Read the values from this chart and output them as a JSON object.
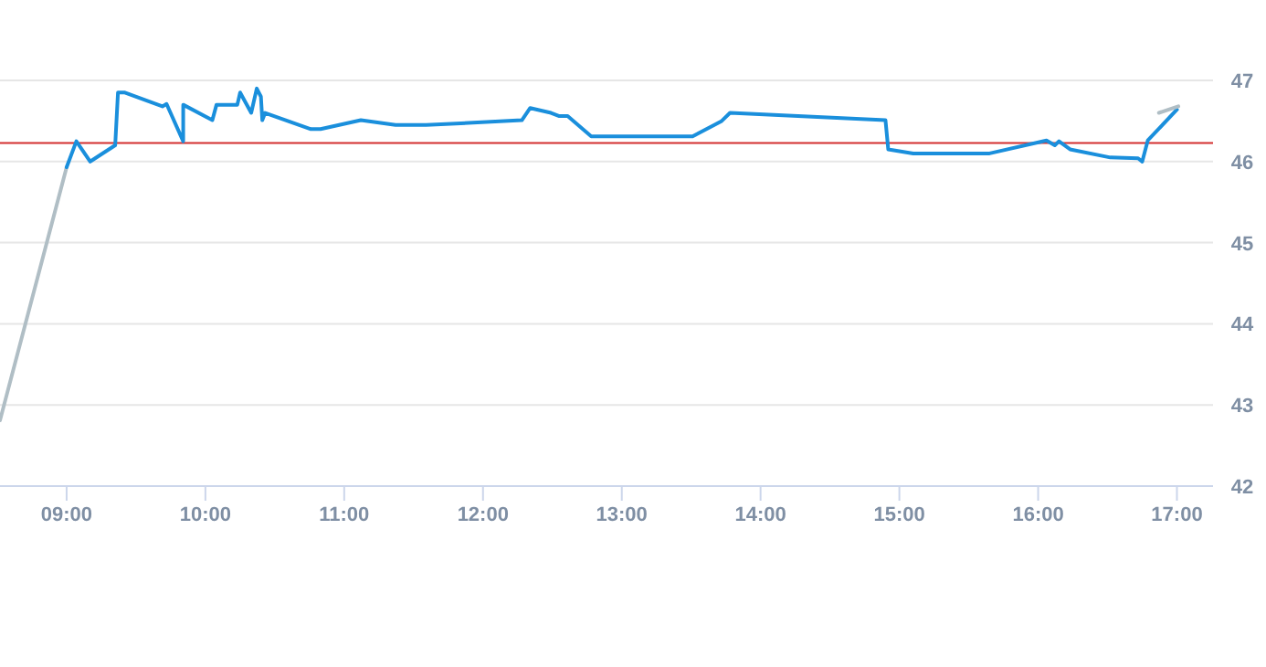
{
  "chart_data": {
    "type": "line",
    "xlim": [
      8.52,
      17.26
    ],
    "ylim": [
      42,
      47
    ],
    "xticks": [
      {
        "value": 9,
        "label": "09:00"
      },
      {
        "value": 10,
        "label": "10:00"
      },
      {
        "value": 11,
        "label": "11:00"
      },
      {
        "value": 12,
        "label": "12:00"
      },
      {
        "value": 13,
        "label": "13:00"
      },
      {
        "value": 14,
        "label": "14:00"
      },
      {
        "value": 15,
        "label": "15:00"
      },
      {
        "value": 16,
        "label": "16:00"
      },
      {
        "value": 17,
        "label": "17:00"
      }
    ],
    "yticks": [
      42,
      43,
      44,
      45,
      46,
      47
    ],
    "grid": "y",
    "marker": "none",
    "line_style": "solid",
    "ref_lines": [
      {
        "axis": "y",
        "value": 46.23,
        "color": "#d32f2f"
      }
    ],
    "series": [
      {
        "color": "#b0bec5",
        "x": [
          8.52,
          9.0
        ],
        "values": [
          42.81,
          45.93
        ]
      },
      {
        "color": "#1a8fdc",
        "x": [
          9.0,
          9.07,
          9.17,
          9.35,
          9.37,
          9.42,
          9.69,
          9.72,
          9.84,
          9.84,
          10.05,
          10.08,
          10.23,
          10.25,
          10.33,
          10.37,
          10.4,
          10.41,
          10.43,
          10.76,
          10.83,
          11.12,
          11.37,
          11.59,
          12.28,
          12.34,
          12.49,
          12.55,
          12.61,
          12.78,
          13.51,
          13.72,
          13.78,
          14.9,
          14.92,
          15.1,
          15.65,
          16.06,
          16.12,
          16.15,
          16.23,
          16.52,
          16.72,
          16.75,
          16.79,
          17.0
        ],
        "values": [
          45.93,
          46.25,
          46.0,
          46.2,
          46.85,
          46.85,
          46.68,
          46.71,
          46.25,
          46.7,
          46.51,
          46.7,
          46.7,
          46.85,
          46.6,
          46.9,
          46.8,
          46.51,
          46.6,
          46.4,
          46.4,
          46.51,
          46.45,
          46.45,
          46.51,
          46.66,
          46.6,
          46.56,
          46.56,
          46.31,
          46.31,
          46.5,
          46.6,
          46.51,
          46.15,
          46.1,
          46.1,
          46.26,
          46.2,
          46.25,
          46.15,
          46.05,
          46.04,
          46.0,
          46.26,
          46.64
        ]
      },
      {
        "color": "#b0bec5",
        "x": [
          16.87,
          17.01
        ],
        "values": [
          46.6,
          46.68
        ]
      }
    ]
  }
}
